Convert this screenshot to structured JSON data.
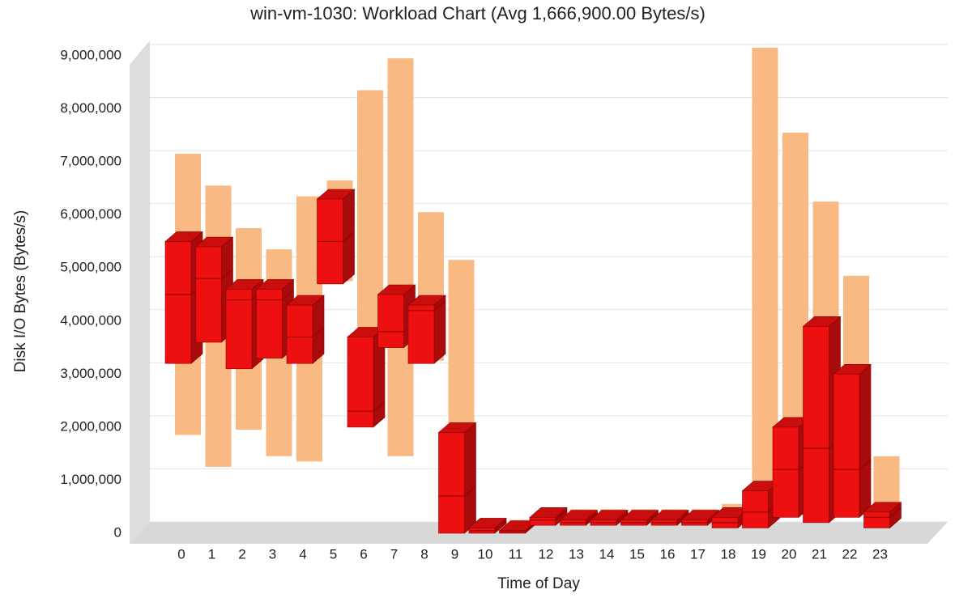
{
  "chart_data": {
    "type": "box",
    "title": "win-vm-1030: Workload Chart (Avg 1,666,900.00 Bytes/s)",
    "x_label": "Time of Day",
    "y_label": "Disk I/O Bytes (Bytes/s)",
    "categories": [
      "0",
      "1",
      "2",
      "3",
      "4",
      "5",
      "6",
      "7",
      "8",
      "9",
      "10",
      "11",
      "12",
      "13",
      "14",
      "15",
      "16",
      "17",
      "18",
      "19",
      "20",
      "21",
      "22",
      "23"
    ],
    "min": [
      1700000,
      1100000,
      1800000,
      1300000,
      1200000,
      4600000,
      2100000,
      1300000,
      3100000,
      0,
      0,
      0,
      100000,
      100000,
      100000,
      100000,
      100000,
      100000,
      100000,
      200000,
      300000,
      200000,
      500000,
      300000
    ],
    "max": [
      7000000,
      6400000,
      5600000,
      5200000,
      6200000,
      6500000,
      8200000,
      8800000,
      5900000,
      5000000,
      100000,
      100000,
      300000,
      300000,
      300000,
      300000,
      300000,
      300000,
      400000,
      9000000,
      7400000,
      6100000,
      4700000,
      1300000
    ],
    "q1": [
      3200000,
      3600000,
      3100000,
      3300000,
      3200000,
      4700000,
      2000000,
      3500000,
      3200000,
      0,
      0,
      0,
      150000,
      150000,
      150000,
      150000,
      150000,
      150000,
      100000,
      100000,
      300000,
      200000,
      300000,
      100000
    ],
    "q3": [
      5500000,
      5400000,
      4600000,
      4600000,
      4300000,
      6300000,
      3700000,
      4500000,
      4300000,
      1900000,
      100000,
      50000,
      300000,
      250000,
      250000,
      250000,
      250000,
      250000,
      300000,
      800000,
      2000000,
      3900000,
      3000000,
      400000
    ],
    "median": [
      4500000,
      4800000,
      4400000,
      4400000,
      3700000,
      5500000,
      2300000,
      3800000,
      4200000,
      700000,
      50000,
      30000,
      250000,
      200000,
      200000,
      200000,
      200000,
      200000,
      200000,
      400000,
      1200000,
      1600000,
      1200000,
      300000
    ],
    "range_color": "#f9b982",
    "box_color": "#ee1010",
    "ylim": [
      0,
      9000000
    ],
    "yticks": [
      0,
      {
        "value": 1000000,
        "label": "1,000,000"
      },
      {
        "value": 2000000,
        "label": "2,000,000"
      },
      {
        "value": 3000000,
        "label": "3,000,000"
      },
      {
        "value": 4000000,
        "label": "4,000,000"
      },
      {
        "value": 5000000,
        "label": "5,000,000"
      },
      {
        "value": 6000000,
        "label": "6,000,000"
      },
      {
        "value": 7000000,
        "label": "7,000,000"
      },
      {
        "value": 8000000,
        "label": "8,000,000"
      },
      {
        "value": 9000000,
        "label": "9,000,000"
      }
    ],
    "grid": true
  }
}
